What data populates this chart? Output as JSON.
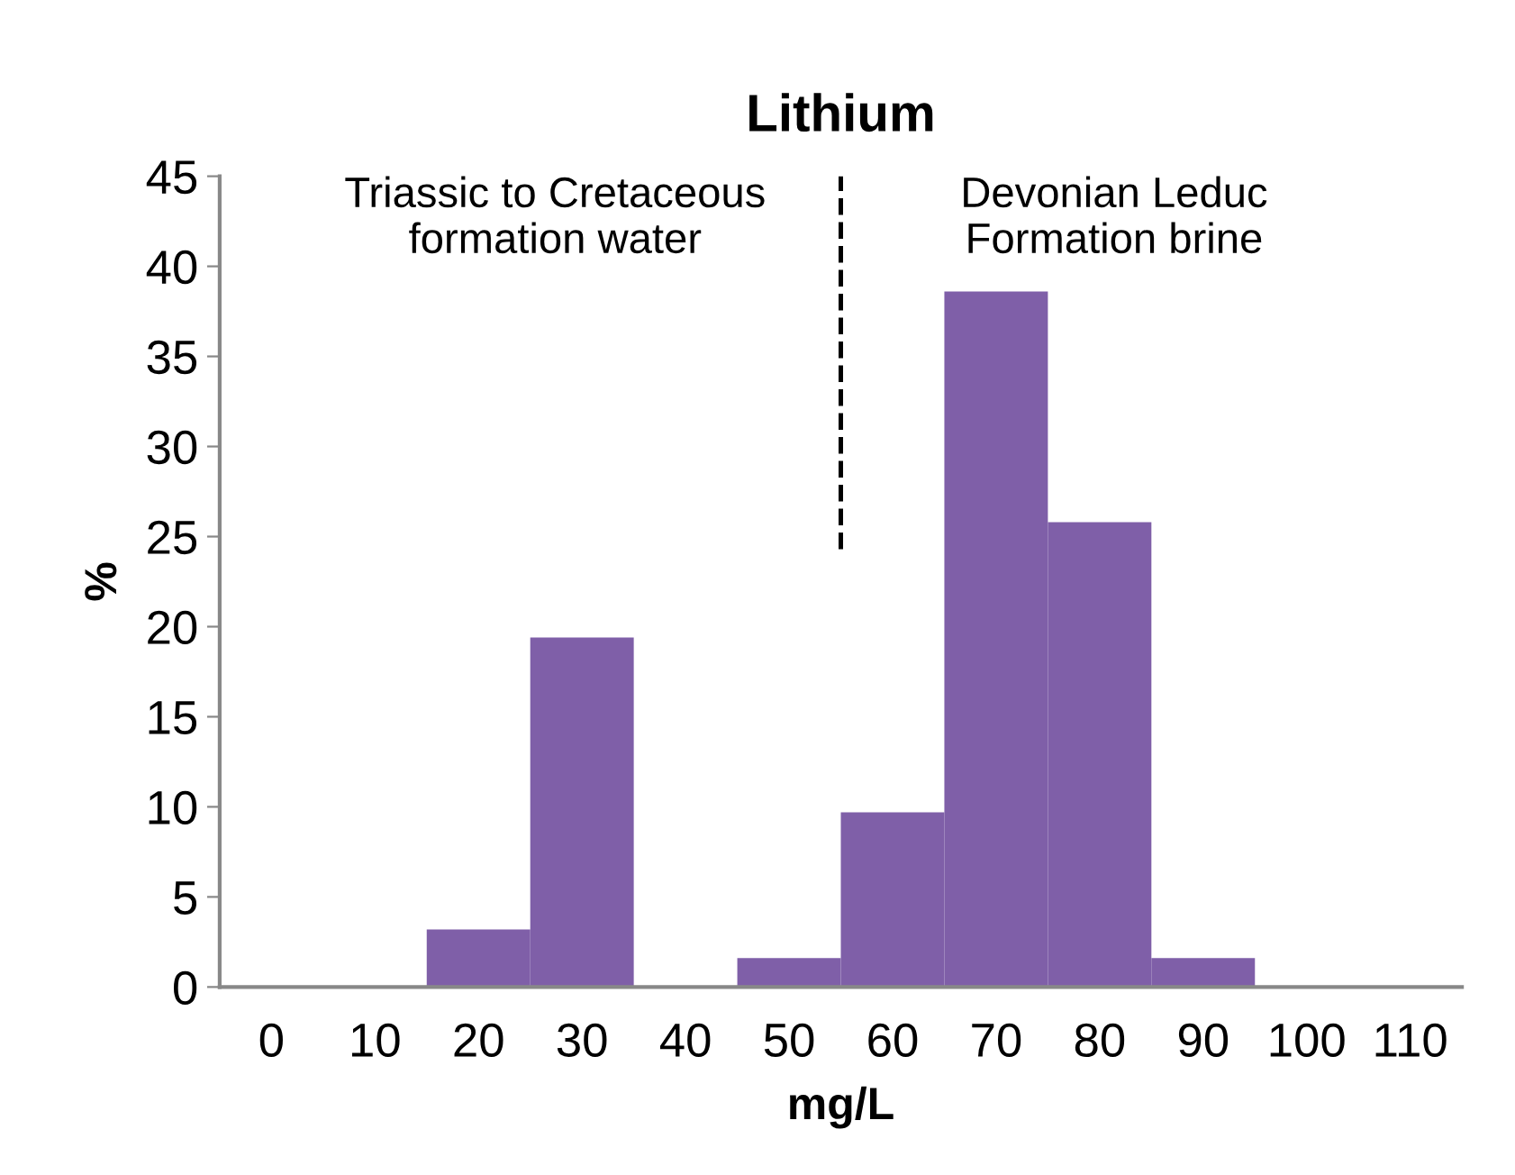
{
  "chart_data": {
    "type": "bar",
    "title": "Lithium",
    "xlabel": "mg/L",
    "ylabel": "%",
    "x": [
      0,
      10,
      20,
      30,
      40,
      50,
      60,
      70,
      80,
      90,
      100,
      110
    ],
    "values": [
      0,
      0,
      3.2,
      19.4,
      0,
      1.6,
      9.7,
      38.6,
      25.8,
      1.6,
      0,
      0
    ],
    "color": "#7f5fa8",
    "xlim": [
      -5,
      115
    ],
    "xticks": [
      0,
      10,
      20,
      30,
      40,
      50,
      60,
      70,
      80,
      90,
      100,
      110
    ],
    "ylim": [
      0,
      45
    ],
    "yticks": [
      0,
      5,
      10,
      15,
      20,
      25,
      30,
      35,
      40,
      45
    ],
    "ref_lines": [
      {
        "axis": "x",
        "value": 55,
        "line_style": "dashed",
        "color": "#000000"
      }
    ],
    "annotations": [
      "Triassic to Cretaceous\nformation water",
      "Devonian Leduc\nFormation brine"
    ],
    "grid": false,
    "legend": false
  }
}
